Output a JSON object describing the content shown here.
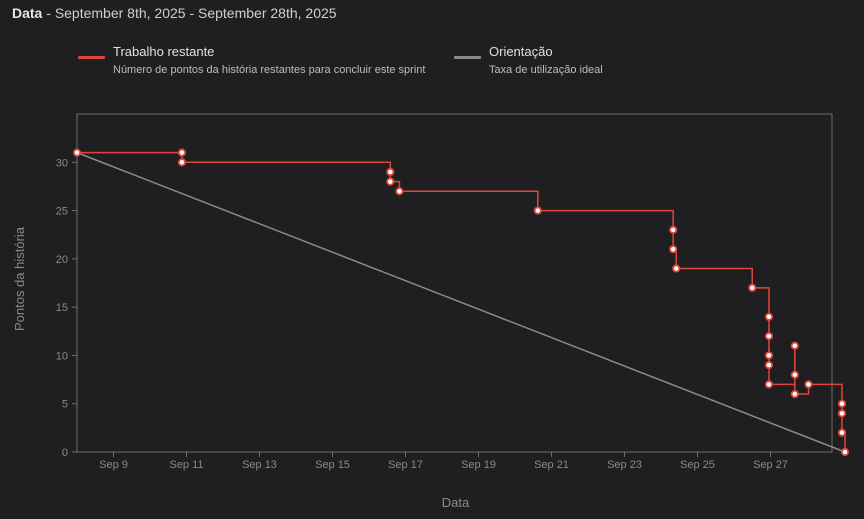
{
  "header": {
    "title": "Data",
    "separator": " - ",
    "range": "September 8th, 2025 - September 28th, 2025"
  },
  "legend": [
    {
      "title": "Trabalho restante",
      "description": "Número de pontos da história restantes para concluir este sprint",
      "color": "#e0453a"
    },
    {
      "title": "Orientação",
      "description": "Taxa de utilização ideal",
      "color": "#8c8c8c"
    }
  ],
  "chart_data": {
    "type": "line",
    "xlabel": "Data",
    "ylabel": "Pontos da história",
    "xlim": [
      "2025-09-08",
      "2025-09-28"
    ],
    "ylim": [
      0,
      35
    ],
    "y_ticks": [
      0,
      5,
      10,
      15,
      20,
      25,
      30
    ],
    "x_ticks": [
      "Sep 9",
      "Sep 11",
      "Sep 13",
      "Sep 15",
      "Sep 17",
      "Sep 19",
      "Sep 21",
      "Sep 23",
      "Sep 25",
      "Sep 27"
    ],
    "grid": false,
    "series": [
      {
        "name": "Trabalho restante",
        "color": "#e0453a",
        "step": true,
        "x": [
          "2025-09-08T00:00",
          "2025-09-10T21:00",
          "2025-09-10T21:00",
          "2025-09-16T14:00",
          "2025-09-16T14:00",
          "2025-09-16T20:00",
          "2025-09-20T15:00",
          "2025-09-24T08:00",
          "2025-09-24T08:00",
          "2025-09-24T10:00",
          "2025-09-26T12:00",
          "2025-09-26T23:00",
          "2025-09-26T23:00",
          "2025-09-26T23:00",
          "2025-09-26T23:00",
          "2025-09-26T23:00",
          "2025-09-27T16:00",
          "2025-09-27T16:00",
          "2025-09-27T16:00",
          "2025-09-28T01:00",
          "2025-09-28T23:00",
          "2025-09-28T23:00",
          "2025-09-28T23:00",
          "2025-09-29T01:00"
        ],
        "y": [
          31,
          31,
          30,
          29,
          28,
          27,
          25,
          23,
          21,
          19,
          17,
          14,
          12,
          10,
          9,
          7,
          11,
          8,
          6,
          7,
          5,
          4,
          2,
          0
        ]
      },
      {
        "name": "Orientação",
        "color": "#8c8c8c",
        "step": false,
        "x": [
          "2025-09-08T00:00",
          "2025-09-29T01:00"
        ],
        "y": [
          31,
          0
        ]
      }
    ]
  }
}
